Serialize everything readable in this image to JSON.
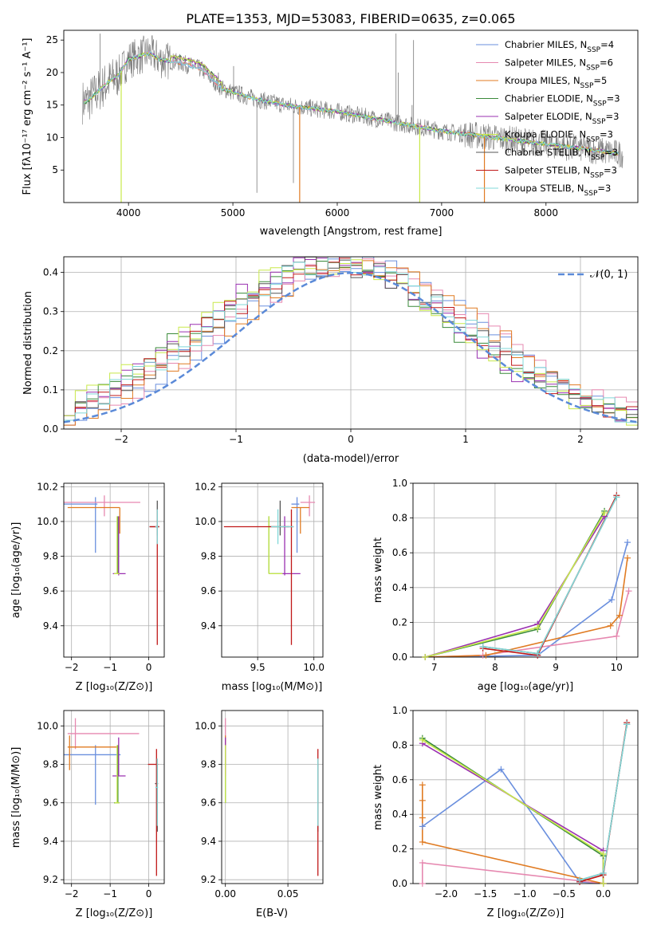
{
  "title": "PLATE=1353, MJD=53083, FIBERID=0635, z=0.065",
  "colors": {
    "chabrier_miles": "#6a8fde",
    "salpeter_miles": "#e688b0",
    "kroupa_miles": "#e07b22",
    "chabrier_elodie": "#3a8a3a",
    "salpeter_elodie": "#9a30b0",
    "kroupa_elodie": "#c8e84a",
    "chabrier_stelib": "#555555",
    "salpeter_stelib": "#c01818",
    "kroupa_stelib": "#80d8d8",
    "data": "#7a7a7a",
    "gaussian": "#5b8ad8"
  },
  "chart_data": [
    {
      "panel": "spectrum",
      "type": "line",
      "xlabel": "wavelength [Angstrom, rest frame]",
      "ylabel": "Flux [fλ10⁻¹⁷ erg cm⁻² s⁻¹ A⁻¹]",
      "xlim": [
        3380,
        8880
      ],
      "ylim": [
        0,
        26.5
      ],
      "xticks": [
        "4000",
        "5000",
        "6000",
        "7000",
        "8000"
      ],
      "yticks": [
        "5",
        "10",
        "15",
        "20",
        "25"
      ],
      "grid": false,
      "legend_position": "top-right",
      "legend": [
        "Chabrier MILES, N_SSP=4",
        "Salpeter MILES, N_SSP=6",
        "Kroupa MILES, N_SSP=5",
        "Chabrier ELODIE, N_SSP=3",
        "Salpeter ELODIE, N_SSP=3",
        "Kroupa ELODIE, N_SSP=3",
        "Chabrier STELIB, N_SSP=3",
        "Salpeter STELIB, N_SSP=3",
        "Kroupa STELIB, N_SSP=3"
      ],
      "continuum": {
        "wavelength": [
          3600,
          3700,
          3800,
          3900,
          4000,
          4100,
          4200,
          4300,
          4500,
          4700,
          4900,
          5000,
          5200,
          5500,
          6000,
          6500,
          7000,
          7500,
          8000,
          8500,
          8700
        ],
        "flux": [
          15.5,
          17,
          18.5,
          19.5,
          22,
          22.5,
          23,
          22,
          21.5,
          20.5,
          17.5,
          17,
          16,
          15,
          14,
          12.5,
          11,
          10,
          9,
          8,
          7.5
        ]
      }
    },
    {
      "panel": "residual-histogram",
      "type": "step",
      "xlabel": "(data-model)/error",
      "ylabel": "Normed distribution",
      "xlim": [
        -2.5,
        2.5
      ],
      "ylim": [
        0,
        0.44
      ],
      "xticks": [
        "−2",
        "−1",
        "0",
        "1",
        "2"
      ],
      "yticks": [
        "0.0",
        "0.1",
        "0.2",
        "0.3",
        "0.4"
      ],
      "grid": true,
      "legend_position": "top-right",
      "legend": [
        "𝒩(0, 1)"
      ],
      "gaussian": {
        "mean": 0,
        "sigma": 1
      }
    },
    {
      "panel": "age-vs-Z",
      "type": "errorbar",
      "xlabel": "Z [log₁₀(Z/Z⊙)]",
      "ylabel": "age [log₁₀(age/yr)]",
      "xlim": [
        -2.2,
        0.4
      ],
      "ylim": [
        9.22,
        10.22
      ],
      "xticks": [
        "−2",
        "−1",
        "0"
      ],
      "yticks": [
        "9.4",
        "9.6",
        "9.8",
        "10.0",
        "10.2"
      ],
      "grid": true,
      "points": [
        {
          "model": "chabrier_miles",
          "x": -1.38,
          "y": 10.1,
          "xerr": [
            0.85,
            0.05
          ],
          "yerr": [
            0.28,
            0.04
          ]
        },
        {
          "model": "salpeter_miles",
          "x": -1.15,
          "y": 10.11,
          "xerr": [
            1.05,
            0.93
          ],
          "yerr": [
            0.08,
            0.04
          ]
        },
        {
          "model": "kroupa_miles",
          "x": -0.75,
          "y": 10.08,
          "xerr": [
            1.35,
            0
          ],
          "yerr": [
            0.15,
            0
          ]
        },
        {
          "model": "chabrier_elodie",
          "x": -0.8,
          "y": 9.7,
          "xerr": [
            0.1,
            0.05
          ],
          "yerr": [
            0,
            0.33
          ]
        },
        {
          "model": "salpeter_elodie",
          "x": -0.78,
          "y": 9.7,
          "xerr": [
            0.15,
            0.18
          ],
          "yerr": [
            0.01,
            0.33
          ]
        },
        {
          "model": "kroupa_elodie",
          "x": -0.82,
          "y": 9.7,
          "xerr": [
            0.08,
            0.06
          ],
          "yerr": [
            0,
            0.33
          ]
        },
        {
          "model": "chabrier_stelib",
          "x": 0.22,
          "y": 9.97,
          "xerr": [
            0.2,
            0.05
          ],
          "yerr": [
            0.05,
            0.15
          ]
        },
        {
          "model": "salpeter_stelib",
          "x": 0.22,
          "y": 9.97,
          "xerr": [
            0.2,
            0.05
          ],
          "yerr": [
            0.68,
            0.1
          ]
        },
        {
          "model": "kroupa_stelib",
          "x": 0.22,
          "y": 9.97,
          "xerr": [
            0.05,
            0.02
          ],
          "yerr": [
            0.1,
            0.1
          ]
        }
      ]
    },
    {
      "panel": "age-vs-mass",
      "type": "errorbar",
      "xlabel": "mass [log₁₀(M/M⊙)]",
      "ylabel": "",
      "xlim": [
        9.18,
        10.08
      ],
      "ylim": [
        9.22,
        10.22
      ],
      "xticks": [
        "9.5",
        "10.0"
      ],
      "yticks": [
        "9.4",
        "9.6",
        "9.8",
        "10.0",
        "10.2"
      ],
      "grid": true,
      "points": [
        {
          "model": "chabrier_miles",
          "x": 9.85,
          "y": 10.1,
          "xerr": [
            0.05,
            0.02
          ],
          "yerr": [
            0.28,
            0.04
          ]
        },
        {
          "model": "salpeter_miles",
          "x": 9.96,
          "y": 10.11,
          "xerr": [
            0.08,
            0.05
          ],
          "yerr": [
            0.08,
            0.04
          ]
        },
        {
          "model": "kroupa_miles",
          "x": 9.88,
          "y": 10.08,
          "xerr": [
            0.08,
            0.08
          ],
          "yerr": [
            0.15,
            0
          ]
        },
        {
          "model": "chabrier_elodie",
          "x": 9.6,
          "y": 9.7,
          "xerr": [
            0,
            0.12
          ],
          "yerr": [
            0,
            0.33
          ]
        },
        {
          "model": "salpeter_elodie",
          "x": 9.74,
          "y": 9.7,
          "xerr": [
            0.02,
            0.14
          ],
          "yerr": [
            0.01,
            0.33
          ]
        },
        {
          "model": "kroupa_elodie",
          "x": 9.6,
          "y": 9.7,
          "xerr": [
            0,
            0.12
          ],
          "yerr": [
            0,
            0.33
          ]
        },
        {
          "model": "chabrier_stelib",
          "x": 9.7,
          "y": 9.97,
          "xerr": [
            0.1,
            0.08
          ],
          "yerr": [
            0.05,
            0.15
          ]
        },
        {
          "model": "salpeter_stelib",
          "x": 9.8,
          "y": 9.97,
          "xerr": [
            0.6,
            0.02
          ],
          "yerr": [
            0.68,
            0.1
          ]
        },
        {
          "model": "kroupa_stelib",
          "x": 9.68,
          "y": 9.97,
          "xerr": [
            0.06,
            0.14
          ],
          "yerr": [
            0.1,
            0.1
          ]
        }
      ]
    },
    {
      "panel": "mass-weight-vs-age",
      "type": "line",
      "xlabel": "age [log₁₀(age/yr)]",
      "ylabel": "mass weight",
      "xlim": [
        6.65,
        10.35
      ],
      "ylim": [
        0,
        1
      ],
      "xticks": [
        "7",
        "8",
        "9",
        "10"
      ],
      "yticks": [
        "0.0",
        "0.2",
        "0.4",
        "0.6",
        "0.8",
        "1.0"
      ],
      "grid": true,
      "series": [
        {
          "model": "chabrier_miles",
          "x": [
            6.85,
            8.7,
            9.92,
            10.18
          ],
          "y": [
            0.0,
            0.01,
            0.33,
            0.66
          ]
        },
        {
          "model": "salpeter_miles",
          "x": [
            6.85,
            7.8,
            10.0,
            10.2
          ],
          "y": [
            0.0,
            0.01,
            0.12,
            0.38
          ]
        },
        {
          "model": "kroupa_miles",
          "x": [
            6.85,
            7.85,
            9.9,
            10.05,
            10.18
          ],
          "y": [
            0.0,
            0.01,
            0.18,
            0.24,
            0.57
          ]
        },
        {
          "model": "chabrier_elodie",
          "x": [
            6.85,
            8.7,
            9.8
          ],
          "y": [
            0.0,
            0.16,
            0.84
          ]
        },
        {
          "model": "salpeter_elodie",
          "x": [
            6.85,
            8.7,
            9.8
          ],
          "y": [
            0.0,
            0.19,
            0.81
          ]
        },
        {
          "model": "kroupa_elodie",
          "x": [
            6.85,
            8.7,
            9.8
          ],
          "y": [
            0.0,
            0.17,
            0.83
          ]
        },
        {
          "model": "chabrier_stelib",
          "x": [
            7.8,
            8.7,
            10.0
          ],
          "y": [
            0.06,
            0.02,
            0.92
          ]
        },
        {
          "model": "salpeter_stelib",
          "x": [
            7.8,
            8.7,
            10.0
          ],
          "y": [
            0.05,
            0.01,
            0.93
          ]
        },
        {
          "model": "kroupa_stelib",
          "x": [
            7.8,
            8.7,
            10.0
          ],
          "y": [
            0.06,
            0.02,
            0.92
          ]
        }
      ]
    },
    {
      "panel": "mass-vs-Z",
      "type": "errorbar",
      "xlabel": "Z [log₁₀(Z/Z⊙)]",
      "ylabel": "mass [log₁₀(M/M⊙)]",
      "xlim": [
        -2.2,
        0.4
      ],
      "ylim": [
        9.18,
        10.08
      ],
      "xticks": [
        "−2",
        "−1",
        "0"
      ],
      "yticks": [
        "9.2",
        "9.4",
        "9.6",
        "9.8",
        "10.0"
      ],
      "grid": true,
      "points": [
        {
          "model": "chabrier_miles",
          "x": -1.38,
          "y": 9.85,
          "xerr": [
            0.85,
            0.65
          ],
          "yerr": [
            0.26,
            0.05
          ]
        },
        {
          "model": "salpeter_miles",
          "x": -1.9,
          "y": 9.96,
          "xerr": [
            0.2,
            1.65
          ],
          "yerr": [
            0.08,
            0.08
          ]
        },
        {
          "model": "kroupa_miles",
          "x": -2.05,
          "y": 9.89,
          "xerr": [
            0.05,
            1.25
          ],
          "yerr": [
            0.12,
            0.06
          ]
        },
        {
          "model": "chabrier_elodie",
          "x": -0.8,
          "y": 9.6,
          "xerr": [
            0.1,
            0.04
          ],
          "yerr": [
            0,
            0.3
          ]
        },
        {
          "model": "salpeter_elodie",
          "x": -0.78,
          "y": 9.74,
          "xerr": [
            0.16,
            0.18
          ],
          "yerr": [
            0,
            0.2
          ]
        },
        {
          "model": "kroupa_elodie",
          "x": -0.82,
          "y": 9.6,
          "xerr": [
            0.07,
            0.06
          ],
          "yerr": [
            0,
            0.3
          ]
        },
        {
          "model": "chabrier_stelib",
          "x": 0.22,
          "y": 9.7,
          "xerr": [
            0.06,
            0.02
          ],
          "yerr": [
            0.25,
            0.1
          ]
        },
        {
          "model": "salpeter_stelib",
          "x": 0.2,
          "y": 9.8,
          "xerr": [
            0.22,
            0.04
          ],
          "yerr": [
            0.58,
            0.08
          ]
        },
        {
          "model": "kroupa_stelib",
          "x": 0.22,
          "y": 9.68,
          "xerr": [
            0.05,
            0.02
          ],
          "yerr": [
            0.2,
            0.15
          ]
        }
      ]
    },
    {
      "panel": "mass-vs-ebv",
      "type": "errorbar",
      "xlabel": "E(B-V)",
      "ylabel": "",
      "xlim": [
        -0.003,
        0.078
      ],
      "ylim": [
        9.18,
        10.08
      ],
      "xticks": [
        "0.00",
        "0.05"
      ],
      "yticks": [
        "9.2",
        "9.4",
        "9.6",
        "9.8",
        "10.0"
      ],
      "grid": true,
      "points": [
        {
          "model": "chabrier_miles",
          "x": 0.0,
          "y": 9.85,
          "xerr": [
            0,
            0
          ],
          "yerr": [
            0.1,
            0.05
          ]
        },
        {
          "model": "salpeter_miles",
          "x": 0.0,
          "y": 9.96,
          "xerr": [
            0,
            0
          ],
          "yerr": [
            0.08,
            0.08
          ]
        },
        {
          "model": "kroupa_miles",
          "x": 0.0,
          "y": 9.89,
          "xerr": [
            0,
            0
          ],
          "yerr": [
            0.12,
            0.06
          ]
        },
        {
          "model": "chabrier_elodie",
          "x": 0.0,
          "y": 9.6,
          "xerr": [
            0,
            0
          ],
          "yerr": [
            0,
            0.3
          ]
        },
        {
          "model": "salpeter_elodie",
          "x": 0.0,
          "y": 9.74,
          "xerr": [
            0,
            0
          ],
          "yerr": [
            0,
            0.2
          ]
        },
        {
          "model": "kroupa_elodie",
          "x": 0.0,
          "y": 9.6,
          "xerr": [
            0,
            0
          ],
          "yerr": [
            0,
            0.3
          ]
        },
        {
          "model": "chabrier_stelib",
          "x": 0.074,
          "y": 9.7,
          "xerr": [
            0,
            0
          ],
          "yerr": [
            0.25,
            0.1
          ]
        },
        {
          "model": "salpeter_stelib",
          "x": 0.074,
          "y": 9.8,
          "xerr": [
            0,
            0
          ],
          "yerr": [
            0.58,
            0.08
          ]
        },
        {
          "model": "kroupa_stelib",
          "x": 0.074,
          "y": 9.68,
          "xerr": [
            0,
            0
          ],
          "yerr": [
            0.2,
            0.15
          ]
        }
      ]
    },
    {
      "panel": "mass-weight-vs-Z",
      "type": "line",
      "xlabel": "Z [log₁₀(Z/Z⊙)]",
      "ylabel": "mass weight",
      "xlim": [
        -2.42,
        0.44
      ],
      "ylim": [
        0,
        1
      ],
      "xticks": [
        "−2.0",
        "−1.5",
        "−1.0",
        "−0.5",
        "0.0"
      ],
      "yticks": [
        "0.0",
        "0.2",
        "0.4",
        "0.6",
        "0.8",
        "1.0"
      ],
      "grid": true,
      "series": [
        {
          "model": "chabrier_miles",
          "x": [
            -2.3,
            -1.3,
            -0.3,
            0.0
          ],
          "y": [
            0.33,
            0.66,
            0.01,
            0.0
          ]
        },
        {
          "model": "salpeter_miles",
          "x": [
            -2.3,
            -2.3,
            0.0
          ],
          "y": [
            0.0,
            0.12,
            0.0
          ]
        },
        {
          "model": "kroupa_miles",
          "x": [
            -2.3,
            -2.3,
            -2.3,
            -2.3,
            0.0
          ],
          "y": [
            0.57,
            0.48,
            0.38,
            0.24,
            0.0
          ]
        },
        {
          "model": "chabrier_elodie",
          "x": [
            -2.3,
            0.0,
            0.0
          ],
          "y": [
            0.84,
            0.16,
            0.0
          ]
        },
        {
          "model": "salpeter_elodie",
          "x": [
            -2.3,
            0.0,
            0.0
          ],
          "y": [
            0.81,
            0.19,
            0.0
          ]
        },
        {
          "model": "kroupa_elodie",
          "x": [
            -2.3,
            0.0,
            0.0
          ],
          "y": [
            0.83,
            0.17,
            0.0
          ]
        },
        {
          "model": "chabrier_stelib",
          "x": [
            -0.3,
            0.0,
            0.3
          ],
          "y": [
            0.02,
            0.06,
            0.92
          ]
        },
        {
          "model": "salpeter_stelib",
          "x": [
            -0.3,
            0.0,
            0.3
          ],
          "y": [
            0.01,
            0.05,
            0.93
          ]
        },
        {
          "model": "kroupa_stelib",
          "x": [
            -0.3,
            0.0,
            0.3
          ],
          "y": [
            0.02,
            0.06,
            0.92
          ]
        }
      ]
    }
  ]
}
